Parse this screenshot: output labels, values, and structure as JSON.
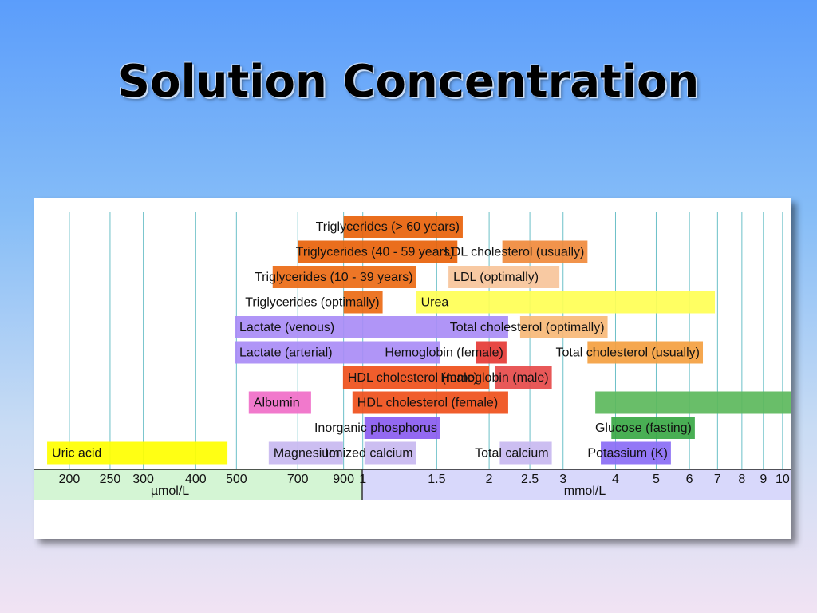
{
  "header": {
    "title": "Solution Concentration"
  },
  "chart_data": {
    "type": "range",
    "log_x": true,
    "grid": true,
    "xlim": [
      0.165,
      10.5
    ],
    "xticks": [
      {
        "value": 0.2,
        "label": "200"
      },
      {
        "value": 0.25,
        "label": "250"
      },
      {
        "value": 0.3,
        "label": "300"
      },
      {
        "value": 0.4,
        "label": "400"
      },
      {
        "value": 0.5,
        "label": "500"
      },
      {
        "value": 0.7,
        "label": "700"
      },
      {
        "value": 0.9,
        "label": "900"
      },
      1,
      1.5,
      2,
      2.5,
      3,
      4,
      5,
      6,
      7,
      8,
      9,
      10
    ],
    "x_unit_left": "µmol/L",
    "x_unit_right": "mmol/L",
    "rows": [
      [
        {
          "label": "Triglycerides (> 60 years)",
          "range": [
            0.9,
            1.73
          ],
          "color": "#e8620a"
        }
      ],
      [
        {
          "label": "Triglycerides (40 - 59 years)",
          "range": [
            0.7,
            1.68
          ],
          "color": "#e8620a"
        },
        {
          "label": "LDL cholesterol (usually)",
          "range": [
            2.15,
            3.43
          ],
          "color": "#f08a3c"
        }
      ],
      [
        {
          "label": "Triglycerides (10 - 39 years)",
          "range": [
            0.61,
            1.34
          ],
          "color": "#ec6a14"
        },
        {
          "label": "LDL (optimally)",
          "range": [
            1.6,
            2.94
          ],
          "color": "#f7c49a"
        }
      ],
      [
        {
          "label": "Triglycerides (optimally)",
          "range": [
            0.9,
            1.115
          ],
          "color": "#ec6a14"
        },
        {
          "label": "Urea",
          "range": [
            1.34,
            6.9
          ],
          "color": "#ffff55"
        }
      ],
      [
        {
          "label": "Lactate (venous)",
          "range": [
            0.495,
            2.22
          ],
          "color": "#a98cf6"
        },
        {
          "label": "Total cholesterol (optimally)",
          "range": [
            2.37,
            3.83
          ],
          "color": "#f7b977"
        }
      ],
      [
        {
          "label": "Lactate (arterial)",
          "range": [
            0.495,
            1.53
          ],
          "color": "#a98cf6"
        },
        {
          "label": "Hemoglobin (female)",
          "range": [
            1.86,
            2.2
          ],
          "color": "#e53935"
        },
        {
          "label": "Total cholesterol (usually)",
          "range": [
            3.43,
            6.46
          ],
          "color": "#f4a040"
        }
      ],
      [
        {
          "label": "HDL cholesterol (male)",
          "range": [
            0.897,
            2.0
          ],
          "color": "#ef4f1a"
        },
        {
          "label": "Hemoglobin (male)",
          "range": [
            2.07,
            2.82
          ],
          "color": "#e64a4a"
        }
      ],
      [
        {
          "label": "Albumin",
          "range": [
            0.535,
            0.753
          ],
          "color": "#f06ec8"
        },
        {
          "label": "HDL cholesterol (female)",
          "range": [
            0.945,
            2.22
          ],
          "color": "#ef4f1a"
        },
        {
          "label": null,
          "range": [
            3.58,
            10.5
          ],
          "color": "#5cb85c"
        }
      ],
      [
        {
          "label": "Inorganic phosphorus",
          "range": [
            1.009,
            1.53
          ],
          "color": "#8a5cf0"
        },
        {
          "label": "Glucose (fasting)",
          "range": [
            3.91,
            6.18
          ],
          "color": "#3aa845"
        }
      ],
      [
        {
          "label": "Uric acid",
          "range": [
            0.177,
            0.476
          ],
          "color": "#ffff00"
        },
        {
          "label": "Magnesium",
          "range": [
            0.597,
            0.897
          ],
          "color": "#c8b8f0"
        },
        {
          "label": "Ionized calcium",
          "range": [
            1.009,
            1.34
          ],
          "color": "#c8b8f0"
        },
        {
          "label": "Total calcium",
          "range": [
            2.12,
            2.82
          ],
          "color": "#c8b8f0"
        },
        {
          "label": "Potassium (K)",
          "range": [
            3.69,
            5.42
          ],
          "color": "#8a6cf5"
        }
      ]
    ]
  }
}
